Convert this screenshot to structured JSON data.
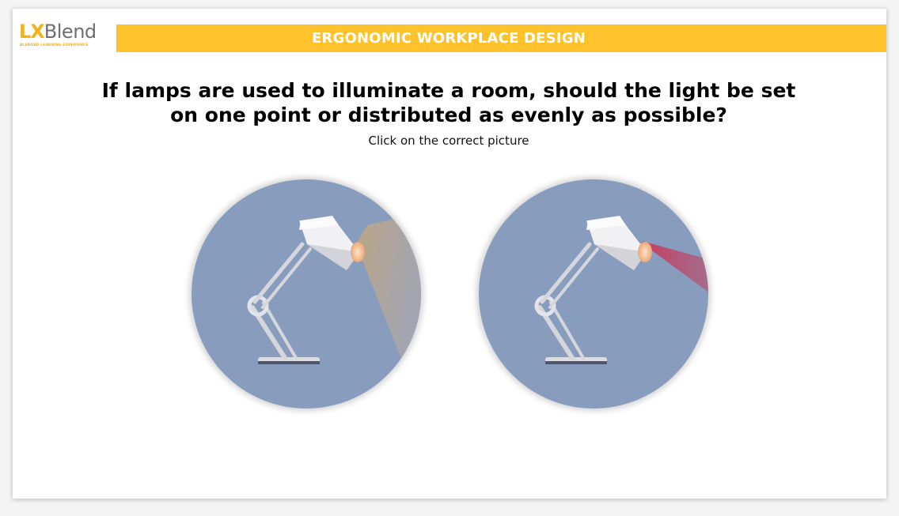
{
  "logo": {
    "lx": "LX",
    "blend": "Blend",
    "tagline": "BLENDED LEARNING EXPERIENCE"
  },
  "header": {
    "title": "ERGONOMIC WORKPLACE DESIGN"
  },
  "question": {
    "line1": "If lamps are used to illuminate a room, should the light be set",
    "line2": "on one point or distributed as evenly as possible?",
    "instruction": "Click on the correct picture"
  },
  "choices": [
    {
      "icon": "lamp-diffuse-light-icon"
    },
    {
      "icon": "lamp-focused-light-icon"
    }
  ],
  "colors": {
    "accent": "#fec22d",
    "logo_orange": "#f3b21b",
    "circle_bg": "#889cbd",
    "focused_beam": "#c8385a",
    "diffuse_beam": "#c7a67a"
  }
}
